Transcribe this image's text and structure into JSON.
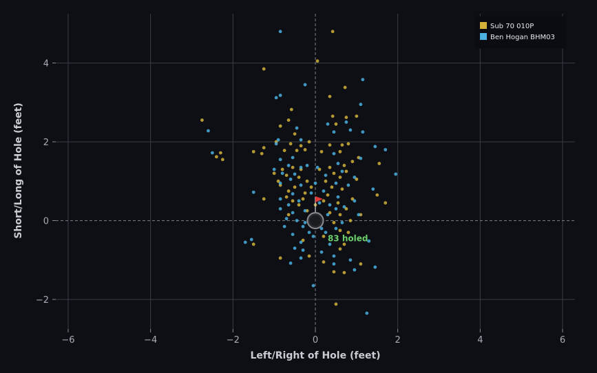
{
  "chart_data": {
    "type": "scatter",
    "xlabel": "Left/Right of Hole (feet)",
    "ylabel": "Short/Long of Hole (feet)",
    "xlim": [
      -6.3,
      6.3
    ],
    "ylim": [
      -2.75,
      5.25
    ],
    "x_ticks": [
      -6,
      -4,
      -2,
      0,
      2,
      4,
      6
    ],
    "y_ticks": [
      -2,
      0,
      2,
      4
    ],
    "x_tick_labels": [
      "−6",
      "−4",
      "−2",
      "0",
      "2",
      "4",
      "6"
    ],
    "y_tick_labels": [
      "−2",
      "0",
      "2",
      "4"
    ],
    "grid": true,
    "legend_position": "top-right",
    "hole": {
      "x": 0,
      "y": 0
    },
    "flag_color": "#e03a3a",
    "annotation": {
      "text": "83 holed",
      "x": 0.3,
      "y": -0.45,
      "color": "#6bcf6b"
    },
    "series": [
      {
        "name": "Sub 70 010P",
        "color": "#d4b23a",
        "points": [
          [
            0.42,
            4.8
          ],
          [
            0.05,
            4.05
          ],
          [
            -1.25,
            3.85
          ],
          [
            0.72,
            3.38
          ],
          [
            0.35,
            3.15
          ],
          [
            -0.58,
            2.82
          ],
          [
            0.42,
            2.65
          ],
          [
            0.75,
            2.62
          ],
          [
            1.0,
            2.65
          ],
          [
            -2.75,
            2.55
          ],
          [
            0.5,
            2.45
          ],
          [
            -0.65,
            2.55
          ],
          [
            -0.85,
            2.4
          ],
          [
            -0.5,
            2.2
          ],
          [
            -0.95,
            2.0
          ],
          [
            -0.6,
            1.95
          ],
          [
            0.35,
            1.92
          ],
          [
            0.65,
            1.92
          ],
          [
            0.8,
            1.95
          ],
          [
            -0.15,
            2.0
          ],
          [
            -1.25,
            1.85
          ],
          [
            -0.35,
            1.9
          ],
          [
            0.15,
            1.75
          ],
          [
            -2.4,
            1.62
          ],
          [
            -2.3,
            1.72
          ],
          [
            -2.25,
            1.55
          ],
          [
            -1.5,
            1.75
          ],
          [
            -1.3,
            1.7
          ],
          [
            -0.75,
            1.78
          ],
          [
            -0.45,
            1.78
          ],
          [
            -0.25,
            1.8
          ],
          [
            0.6,
            1.75
          ],
          [
            1.05,
            1.6
          ],
          [
            0.9,
            1.5
          ],
          [
            1.55,
            1.45
          ],
          [
            0.7,
            1.4
          ],
          [
            0.35,
            1.35
          ],
          [
            -0.55,
            1.35
          ],
          [
            -0.8,
            1.3
          ],
          [
            -0.35,
            1.3
          ],
          [
            0.1,
            1.3
          ],
          [
            0.45,
            1.2
          ],
          [
            0.75,
            1.25
          ],
          [
            -1.0,
            1.2
          ],
          [
            -0.7,
            1.15
          ],
          [
            -0.4,
            1.1
          ],
          [
            0.6,
            1.1
          ],
          [
            1.0,
            1.05
          ],
          [
            -0.9,
            1.0
          ],
          [
            -0.2,
            1.0
          ],
          [
            0.25,
            1.0
          ],
          [
            -0.85,
            0.9
          ],
          [
            -0.5,
            0.85
          ],
          [
            -0.1,
            0.85
          ],
          [
            0.4,
            0.85
          ],
          [
            0.65,
            0.8
          ],
          [
            -0.65,
            0.75
          ],
          [
            -0.25,
            0.7
          ],
          [
            0.3,
            0.65
          ],
          [
            1.5,
            0.65
          ],
          [
            -0.7,
            0.6
          ],
          [
            0.9,
            0.55
          ],
          [
            -0.55,
            0.5
          ],
          [
            -0.3,
            0.55
          ],
          [
            0.2,
            0.5
          ],
          [
            0.55,
            0.45
          ],
          [
            1.7,
            0.45
          ],
          [
            -1.25,
            0.55
          ],
          [
            -0.4,
            0.4
          ],
          [
            0.0,
            0.4
          ],
          [
            0.75,
            0.3
          ],
          [
            -0.2,
            0.25
          ],
          [
            0.35,
            0.2
          ],
          [
            0.6,
            0.15
          ],
          [
            1.1,
            0.15
          ],
          [
            -0.65,
            0.15
          ],
          [
            0.85,
            0.0
          ],
          [
            0.45,
            -0.05
          ],
          [
            -0.05,
            -0.05
          ],
          [
            0.6,
            -0.25
          ],
          [
            0.8,
            -0.3
          ],
          [
            0.2,
            -0.4
          ],
          [
            -0.3,
            -0.5
          ],
          [
            0.7,
            -0.6
          ],
          [
            -1.5,
            -0.6
          ],
          [
            0.6,
            -0.72
          ],
          [
            -0.15,
            -0.9
          ],
          [
            -0.85,
            -0.95
          ],
          [
            0.2,
            -1.05
          ],
          [
            1.1,
            -1.1
          ],
          [
            0.45,
            -1.3
          ],
          [
            0.7,
            -1.32
          ],
          [
            0.5,
            -2.12
          ]
        ]
      },
      {
        "name": "Ben Hogan BHM03",
        "color": "#4ab0e0",
        "points": [
          [
            -0.85,
            4.8
          ],
          [
            1.15,
            3.58
          ],
          [
            -0.25,
            3.45
          ],
          [
            -0.95,
            3.12
          ],
          [
            -0.85,
            3.18
          ],
          [
            1.1,
            2.95
          ],
          [
            0.3,
            2.45
          ],
          [
            0.75,
            2.5
          ],
          [
            -0.45,
            2.35
          ],
          [
            0.85,
            2.3
          ],
          [
            0.45,
            2.25
          ],
          [
            1.15,
            2.25
          ],
          [
            -2.6,
            2.28
          ],
          [
            -0.9,
            2.05
          ],
          [
            -0.35,
            2.05
          ],
          [
            -0.95,
            1.95
          ],
          [
            1.45,
            1.88
          ],
          [
            1.7,
            1.8
          ],
          [
            -2.5,
            1.72
          ],
          [
            0.45,
            1.7
          ],
          [
            -0.55,
            1.6
          ],
          [
            1.1,
            1.58
          ],
          [
            -0.85,
            1.55
          ],
          [
            0.55,
            1.45
          ],
          [
            0.05,
            1.35
          ],
          [
            -0.65,
            1.4
          ],
          [
            -0.35,
            1.35
          ],
          [
            -0.2,
            1.4
          ],
          [
            0.65,
            1.25
          ],
          [
            -1.0,
            1.3
          ],
          [
            1.95,
            1.18
          ],
          [
            -0.8,
            1.2
          ],
          [
            -0.5,
            1.18
          ],
          [
            0.25,
            1.15
          ],
          [
            0.95,
            1.1
          ],
          [
            -0.6,
            1.05
          ],
          [
            -0.85,
            0.95
          ],
          [
            0.5,
            0.95
          ],
          [
            0.0,
            0.95
          ],
          [
            -0.35,
            0.9
          ],
          [
            0.8,
            0.9
          ],
          [
            1.4,
            0.8
          ],
          [
            -1.5,
            0.72
          ],
          [
            -0.55,
            0.68
          ],
          [
            -0.1,
            0.7
          ],
          [
            0.2,
            0.75
          ],
          [
            0.55,
            0.6
          ],
          [
            -0.85,
            0.55
          ],
          [
            -0.4,
            0.5
          ],
          [
            0.95,
            0.5
          ],
          [
            0.1,
            0.45
          ],
          [
            -0.65,
            0.4
          ],
          [
            0.35,
            0.4
          ],
          [
            0.7,
            0.35
          ],
          [
            -0.85,
            0.3
          ],
          [
            -0.25,
            0.25
          ],
          [
            0.5,
            0.3
          ],
          [
            -0.55,
            0.2
          ],
          [
            1.05,
            0.15
          ],
          [
            0.3,
            0.15
          ],
          [
            -0.7,
            0.05
          ],
          [
            -0.45,
            0.0
          ],
          [
            -0.25,
            -0.05
          ],
          [
            0.65,
            -0.05
          ],
          [
            -0.75,
            -0.15
          ],
          [
            -0.3,
            -0.15
          ],
          [
            0.15,
            -0.2
          ],
          [
            0.5,
            -0.2
          ],
          [
            -0.15,
            -0.3
          ],
          [
            0.25,
            -0.3
          ],
          [
            -0.55,
            -0.35
          ],
          [
            -0.05,
            -0.4
          ],
          [
            -1.55,
            -0.48
          ],
          [
            1.3,
            -0.52
          ],
          [
            -1.7,
            -0.55
          ],
          [
            -0.35,
            -0.55
          ],
          [
            0.35,
            -0.6
          ],
          [
            -0.5,
            -0.7
          ],
          [
            -0.3,
            -0.75
          ],
          [
            0.15,
            -0.8
          ],
          [
            0.45,
            -0.9
          ],
          [
            -0.35,
            -0.95
          ],
          [
            0.85,
            -1.0
          ],
          [
            -0.6,
            -1.08
          ],
          [
            0.45,
            -1.1
          ],
          [
            1.45,
            -1.18
          ],
          [
            0.95,
            -1.25
          ],
          [
            -0.05,
            -1.65
          ],
          [
            1.25,
            -2.35
          ]
        ]
      }
    ]
  }
}
